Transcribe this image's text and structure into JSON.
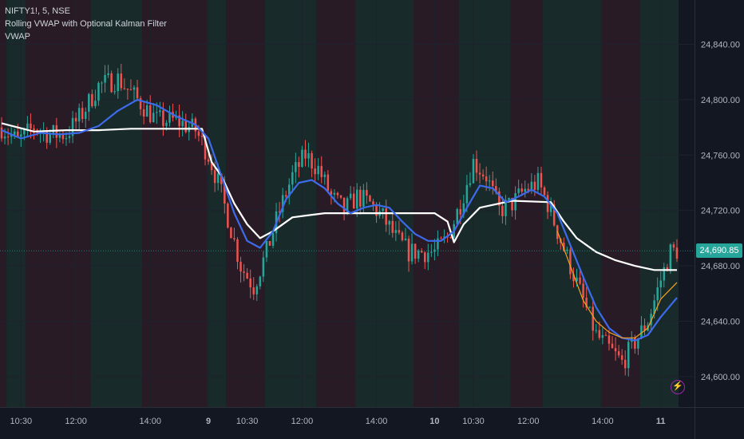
{
  "legend": {
    "symbol": "NIFTY1!, 5, NSE",
    "indicator": "Rolling VWAP with Optional Kalman Filter",
    "sub": "VWAP"
  },
  "last_price": "24,690.85",
  "colors": {
    "bg": "#131722",
    "up": "#26a69a",
    "down": "#ef5350",
    "vwap": "#ffffff",
    "kalman": "#3d6bec",
    "fast": "#f7a21b",
    "bg_up": "#1d3a32",
    "bg_down": "#3a1f28",
    "grid": "#1e222d",
    "badge": "#26a69a",
    "icon": "#9c27b0"
  },
  "icons": [
    "lightning-icon"
  ],
  "chart_data": {
    "type": "candlestick",
    "y_ticks": [
      "24,840.00",
      "24,800.00",
      "24,760.00",
      "24,720.00",
      "24,680.00",
      "24,640.00",
      "24,600.00"
    ],
    "y_tick_values": [
      24840,
      24800,
      24760,
      24720,
      24680,
      24640,
      24600
    ],
    "ylim": [
      24578,
      24872
    ],
    "x_ticks": [
      "10:30",
      "12:00",
      "14:00",
      "9",
      "10:30",
      "12:00",
      "14:00",
      "10",
      "10:30",
      "12:00",
      "14:00",
      "11"
    ],
    "x_tick_index": [
      6,
      23,
      46,
      64,
      76,
      93,
      116,
      134,
      146,
      163,
      186,
      204
    ],
    "bar_count": 210,
    "candles_path": [
      [
        0,
        24780
      ],
      [
        5,
        24770
      ],
      [
        10,
        24780
      ],
      [
        15,
        24775
      ],
      [
        20,
        24775
      ],
      [
        25,
        24790
      ],
      [
        30,
        24810
      ],
      [
        36,
        24815
      ],
      [
        42,
        24800
      ],
      [
        48,
        24785
      ],
      [
        54,
        24785
      ],
      [
        60,
        24778
      ],
      [
        64,
        24760
      ],
      [
        67,
        24740
      ],
      [
        70,
        24715
      ],
      [
        74,
        24680
      ],
      [
        78,
        24665
      ],
      [
        82,
        24690
      ],
      [
        86,
        24720
      ],
      [
        90,
        24745
      ],
      [
        94,
        24760
      ],
      [
        98,
        24750
      ],
      [
        102,
        24730
      ],
      [
        106,
        24720
      ],
      [
        110,
        24730
      ],
      [
        114,
        24725
      ],
      [
        118,
        24715
      ],
      [
        122,
        24700
      ],
      [
        126,
        24690
      ],
      [
        130,
        24690
      ],
      [
        134,
        24690
      ],
      [
        138,
        24700
      ],
      [
        142,
        24725
      ],
      [
        146,
        24755
      ],
      [
        150,
        24745
      ],
      [
        154,
        24720
      ],
      [
        158,
        24725
      ],
      [
        162,
        24735
      ],
      [
        166,
        24740
      ],
      [
        169,
        24725
      ],
      [
        172,
        24705
      ],
      [
        176,
        24680
      ],
      [
        180,
        24655
      ],
      [
        184,
        24630
      ],
      [
        188,
        24620
      ],
      [
        192,
        24610
      ],
      [
        196,
        24625
      ],
      [
        200,
        24640
      ],
      [
        204,
        24670
      ],
      [
        207,
        24690
      ],
      [
        209,
        24691
      ]
    ],
    "series": [
      {
        "name": "VWAP",
        "color": "#ffffff",
        "points": [
          [
            0,
            24783
          ],
          [
            10,
            24777
          ],
          [
            20,
            24778
          ],
          [
            30,
            24778
          ],
          [
            40,
            24779
          ],
          [
            50,
            24779
          ],
          [
            62,
            24779
          ],
          [
            65,
            24755
          ],
          [
            68,
            24745
          ],
          [
            72,
            24725
          ],
          [
            76,
            24710
          ],
          [
            80,
            24700
          ],
          [
            84,
            24705
          ],
          [
            90,
            24715
          ],
          [
            100,
            24718
          ],
          [
            110,
            24718
          ],
          [
            120,
            24718
          ],
          [
            128,
            24718
          ],
          [
            134,
            24718
          ],
          [
            138,
            24712
          ],
          [
            140,
            24697
          ],
          [
            143,
            24710
          ],
          [
            148,
            24722
          ],
          [
            158,
            24727
          ],
          [
            170,
            24726
          ],
          [
            174,
            24712
          ],
          [
            178,
            24700
          ],
          [
            184,
            24690
          ],
          [
            190,
            24684
          ],
          [
            196,
            24680
          ],
          [
            202,
            24677
          ],
          [
            209,
            24677
          ]
        ]
      },
      {
        "name": "Kalman",
        "color": "#3d6bec",
        "points": [
          [
            0,
            24778
          ],
          [
            6,
            24772
          ],
          [
            12,
            24776
          ],
          [
            18,
            24775
          ],
          [
            24,
            24776
          ],
          [
            30,
            24781
          ],
          [
            36,
            24792
          ],
          [
            42,
            24800
          ],
          [
            48,
            24796
          ],
          [
            54,
            24788
          ],
          [
            60,
            24782
          ],
          [
            64,
            24772
          ],
          [
            68,
            24745
          ],
          [
            72,
            24718
          ],
          [
            76,
            24698
          ],
          [
            80,
            24693
          ],
          [
            84,
            24705
          ],
          [
            88,
            24728
          ],
          [
            92,
            24740
          ],
          [
            96,
            24742
          ],
          [
            100,
            24736
          ],
          [
            104,
            24725
          ],
          [
            108,
            24718
          ],
          [
            112,
            24722
          ],
          [
            116,
            24724
          ],
          [
            120,
            24722
          ],
          [
            124,
            24712
          ],
          [
            128,
            24703
          ],
          [
            132,
            24698
          ],
          [
            136,
            24698
          ],
          [
            140,
            24705
          ],
          [
            144,
            24722
          ],
          [
            148,
            24738
          ],
          [
            152,
            24736
          ],
          [
            156,
            24726
          ],
          [
            160,
            24730
          ],
          [
            164,
            24735
          ],
          [
            168,
            24730
          ],
          [
            172,
            24718
          ],
          [
            176,
            24695
          ],
          [
            180,
            24672
          ],
          [
            184,
            24650
          ],
          [
            188,
            24635
          ],
          [
            192,
            24628
          ],
          [
            196,
            24626
          ],
          [
            200,
            24630
          ],
          [
            204,
            24643
          ],
          [
            209,
            24657
          ]
        ]
      },
      {
        "name": "Fast",
        "color": "#f7a21b",
        "points": [
          [
            172,
            24705
          ],
          [
            176,
            24680
          ],
          [
            180,
            24655
          ],
          [
            184,
            24640
          ],
          [
            188,
            24632
          ],
          [
            192,
            24628
          ],
          [
            196,
            24628
          ],
          [
            200,
            24635
          ],
          [
            204,
            24656
          ],
          [
            209,
            24668
          ]
        ]
      }
    ],
    "bg_zones": [
      {
        "from": 0,
        "to": 2,
        "trend": "down"
      },
      {
        "from": 2,
        "to": 8,
        "trend": "up"
      },
      {
        "from": 8,
        "to": 28,
        "trend": "down"
      },
      {
        "from": 28,
        "to": 44,
        "trend": "up"
      },
      {
        "from": 44,
        "to": 64,
        "trend": "down"
      },
      {
        "from": 64,
        "to": 70,
        "trend": "up"
      },
      {
        "from": 70,
        "to": 82,
        "trend": "down"
      },
      {
        "from": 82,
        "to": 98,
        "trend": "up"
      },
      {
        "from": 98,
        "to": 110,
        "trend": "down"
      },
      {
        "from": 110,
        "to": 128,
        "trend": "up"
      },
      {
        "from": 128,
        "to": 142,
        "trend": "down"
      },
      {
        "from": 142,
        "to": 158,
        "trend": "up"
      },
      {
        "from": 158,
        "to": 168,
        "trend": "down"
      },
      {
        "from": 168,
        "to": 186,
        "trend": "up"
      },
      {
        "from": 186,
        "to": 198,
        "trend": "down"
      },
      {
        "from": 198,
        "to": 210,
        "trend": "up"
      }
    ]
  }
}
